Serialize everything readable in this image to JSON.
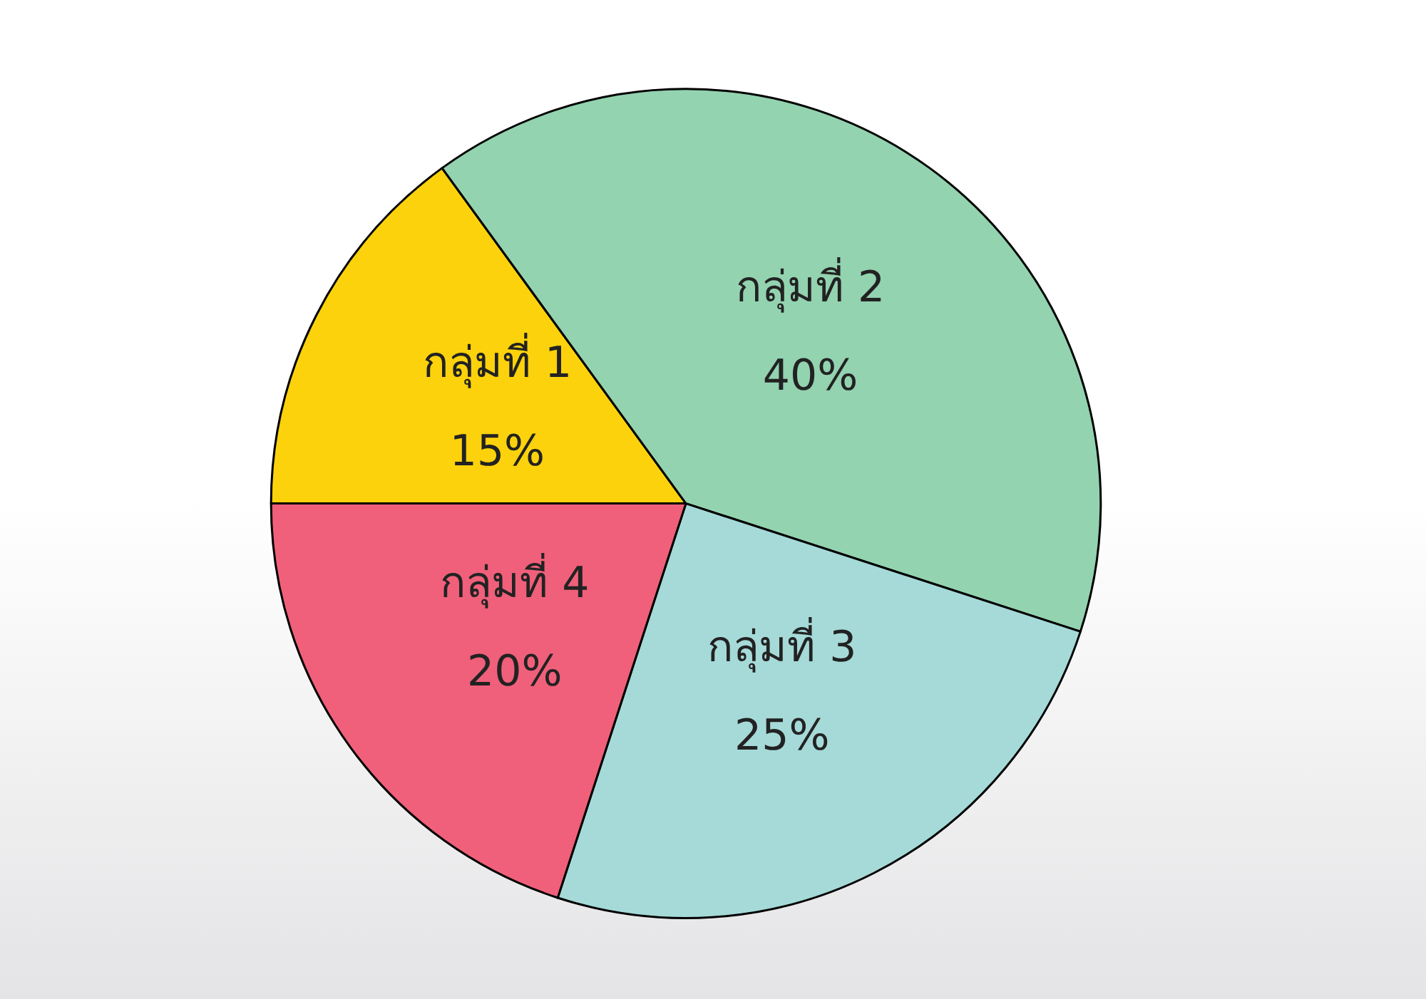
{
  "chart_data": {
    "type": "pie",
    "categories": [
      "กลุ่มที่ 1",
      "กลุ่มที่ 2",
      "กลุ่มที่ 3",
      "กลุ่มที่ 4"
    ],
    "values": [
      15,
      40,
      25,
      20
    ],
    "value_labels": [
      "15%",
      "40%",
      "25%",
      "20%"
    ],
    "colors": [
      "#fcd20c",
      "#93d3b0",
      "#a5dad8",
      "#f0607a"
    ],
    "legend": false
  }
}
